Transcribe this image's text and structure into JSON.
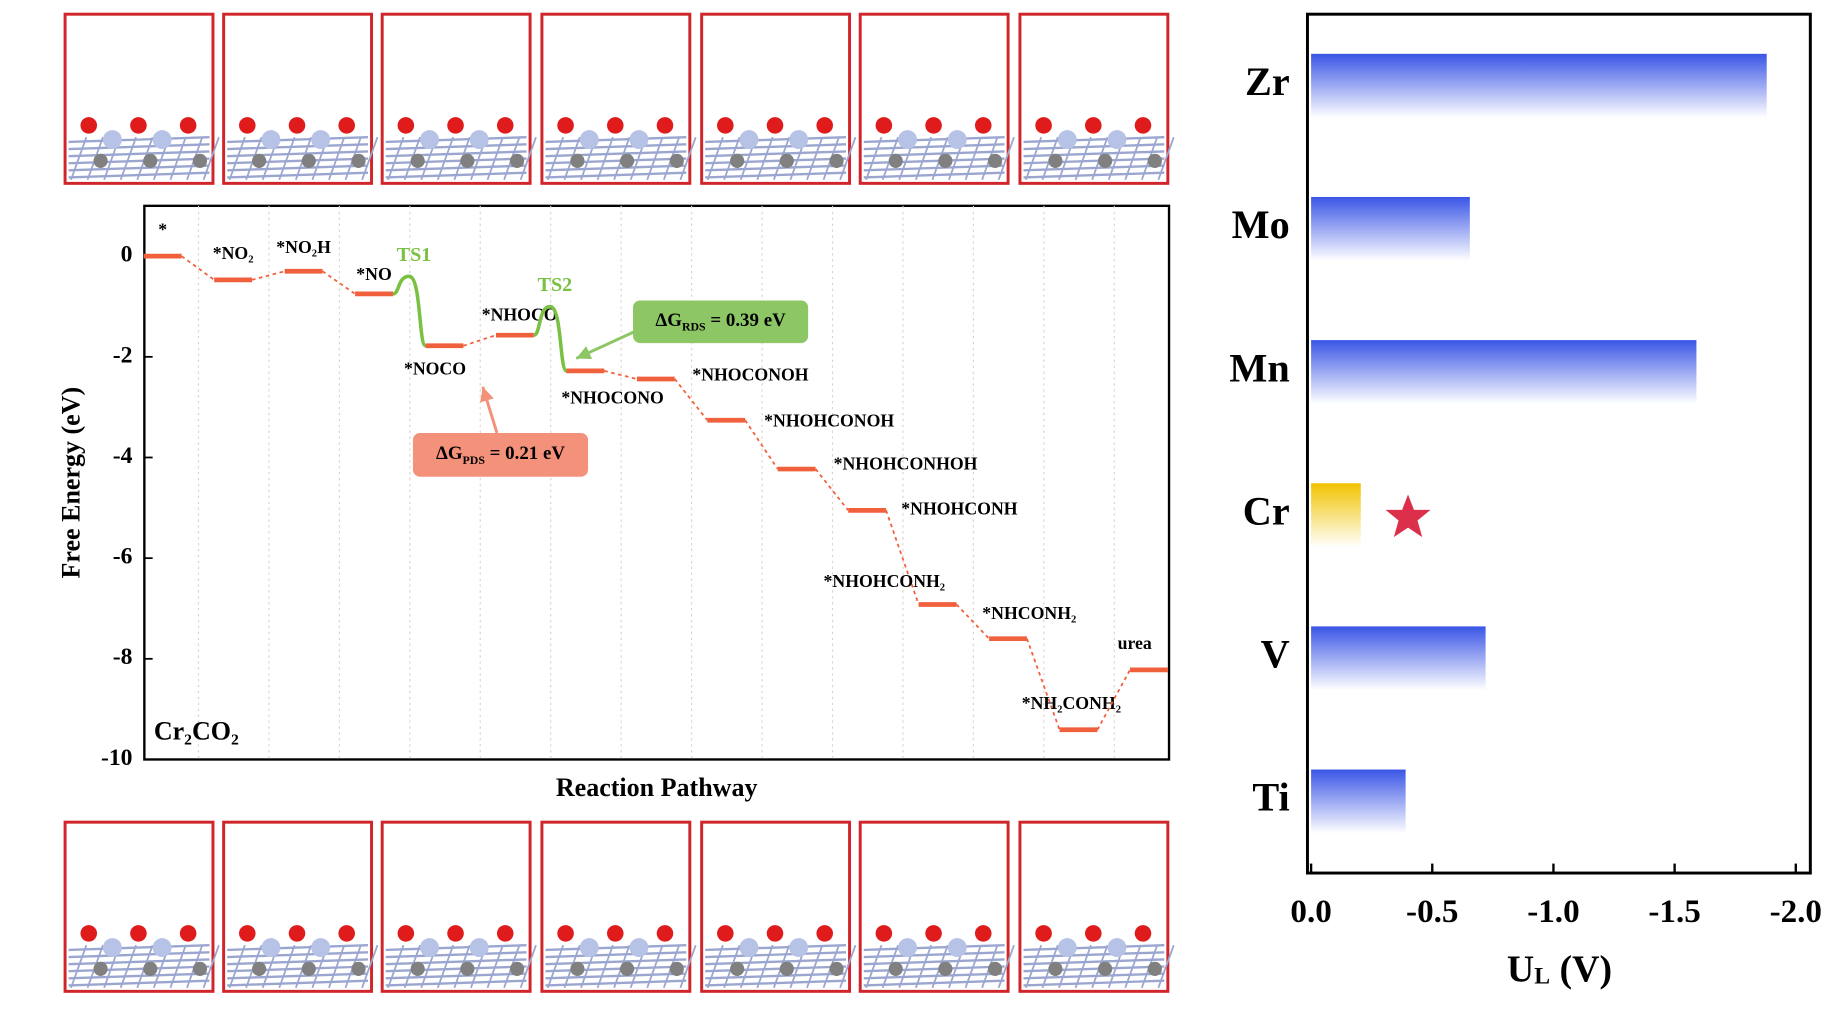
{
  "chart_data": [
    {
      "type": "energy_profile",
      "y_label": "Free Energy (eV)",
      "x_label": "Reaction Pathway",
      "annotation": "Cr₂CO₂",
      "categories": [
        "*",
        "*NO₂",
        "*NO₂H",
        "*NO",
        "*NOCO",
        "*NHOCO",
        "*NHOCONO",
        "*NHOCONOH",
        "*NHOHCONOH",
        "*NHOHCONHOH",
        "*NHOHCONH",
        "*NHOHCONH₂",
        "*NHCONH₂",
        "*NH₂CONH₂",
        "urea"
      ],
      "values": [
        0,
        -0.47,
        -0.3,
        -0.75,
        -1.78,
        -1.57,
        -2.28,
        -2.44,
        -3.26,
        -4.23,
        -5.05,
        -6.92,
        -7.6,
        -9.41,
        -8.22
      ],
      "color": "#f0603c",
      "ylim": [
        -10,
        1.0
      ],
      "yticks": [
        0,
        -2,
        -4,
        -6,
        -8,
        -10
      ],
      "transition_states": [
        {
          "label": "TS1",
          "value": -0.4
        },
        {
          "label": "TS2",
          "value": -1.0
        }
      ],
      "ts_color": "#7ac143",
      "callouts": [
        {
          "parts": [
            "ΔG",
            "RDS",
            " = 0.39 eV"
          ],
          "color": "#8dc765"
        },
        {
          "parts": [
            "ΔG",
            "PDS",
            " = 0.21 eV"
          ],
          "color": "#f4917a"
        }
      ]
    },
    {
      "type": "hbar",
      "categories": [
        "Zr",
        "Mo",
        "Mn",
        "Cr",
        "V",
        "Ti"
      ],
      "values": [
        -1.88,
        -0.655,
        -1.59,
        -0.205,
        -0.72,
        -0.39
      ],
      "colors": [
        "#3a55e6",
        "#3a55e6",
        "#3a55e6",
        "#f2c300",
        "#3a55e6",
        "#3a55e6"
      ],
      "xlim": [
        0.015,
        -2.06
      ],
      "xticks": [
        {
          "value": 0,
          "label": "0.0"
        },
        -0.5,
        {
          "value": -1,
          "label": "-1.0"
        },
        -1.5,
        {
          "value": -2,
          "label": "-2.0"
        }
      ],
      "x_label_parts": [
        "U",
        "L",
        " (V)"
      ]
    }
  ]
}
